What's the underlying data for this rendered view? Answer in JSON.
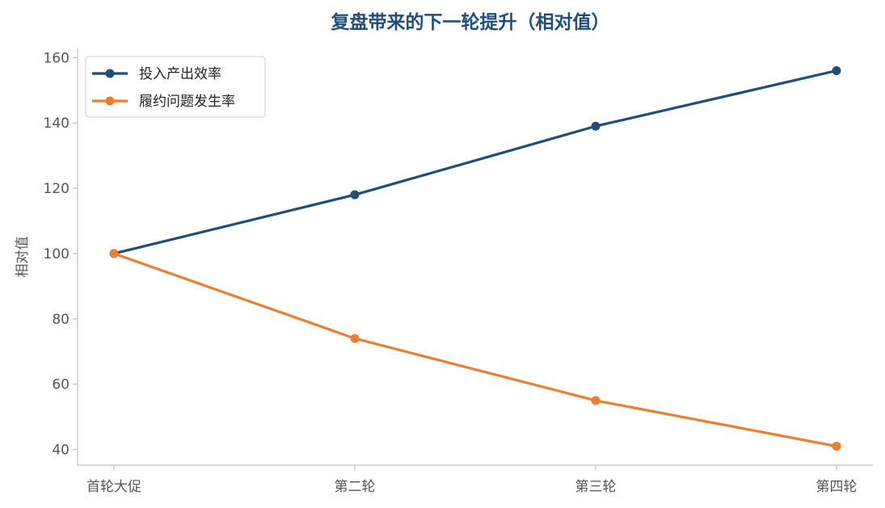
{
  "chart_data": {
    "type": "line",
    "title": "复盘带来的下一轮提升（相对值）",
    "xlabel": "",
    "ylabel": "相对值",
    "categories": [
      "首轮大促",
      "第二轮",
      "第三轮",
      "第四轮"
    ],
    "series": [
      {
        "name": "投入产出效率",
        "values": [
          100,
          118,
          139,
          156
        ],
        "color": "#1f4e79"
      },
      {
        "name": "履约问题发生率",
        "values": [
          100,
          74,
          55,
          41
        ],
        "color": "#ed7d31"
      }
    ],
    "ylim": [
      35.2,
      162.8
    ],
    "yticks": [
      40,
      60,
      80,
      100,
      120,
      140,
      160
    ],
    "grid": false,
    "legend": "top-left",
    "title_color": "#1f4e79"
  }
}
